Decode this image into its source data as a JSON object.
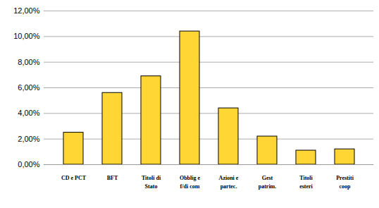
{
  "chart_data": {
    "type": "bar",
    "categories": [
      "CD e PCT",
      "BFT",
      "Titoli di\nStato",
      "Obblig e\nf/di com",
      "Azioni e\npartec.",
      "Gest\npatrim.",
      "Titoli\nesteri",
      "Prestiti\ncoop"
    ],
    "values": [
      2.5,
      5.6,
      6.9,
      10.4,
      4.4,
      2.2,
      1.1,
      1.2
    ],
    "color": "#ffd633",
    "ylim": [
      0,
      12
    ],
    "yticks": [
      {
        "value": 0,
        "label": "0,00%"
      },
      {
        "value": 2,
        "label": "2,00%"
      },
      {
        "value": 4,
        "label": "4,00%"
      },
      {
        "value": 6,
        "label": "6,00%"
      },
      {
        "value": 8,
        "label": "8,00%"
      },
      {
        "value": 10,
        "label": "10,00%"
      },
      {
        "value": 12,
        "label": "12,00%"
      }
    ],
    "grid": true
  }
}
